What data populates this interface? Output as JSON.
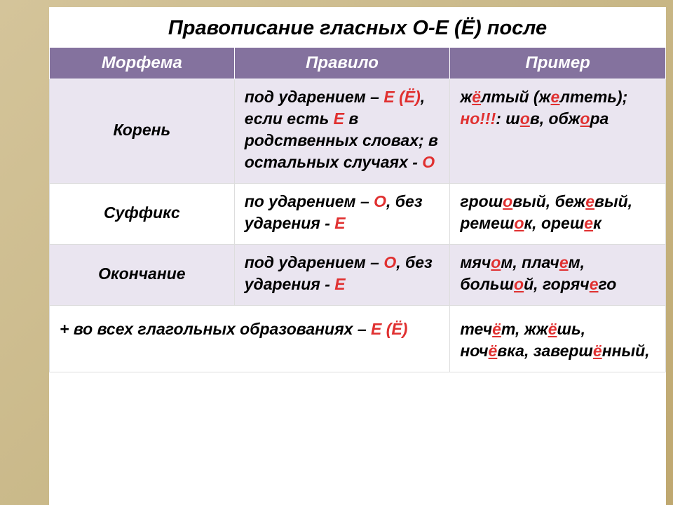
{
  "title": "Правописание гласных О-Е (Ё) после",
  "header": {
    "col1": "Морфема",
    "col2": "Правило",
    "col3": "Пример"
  },
  "rows": {
    "r1": {
      "morph": "Корень",
      "rule": {
        "t1": "под ударением – ",
        "e": "Е (Ё)",
        "t2": ", если есть ",
        "e2": "Е",
        "t3": " в родственных словах; в остальных случаях - ",
        "o": "О"
      },
      "ex": {
        "t1": "ж",
        "h1": "ё",
        "t2": "лтый (ж",
        "h2": "е",
        "t3": "лтеть);",
        "no": "но!!!",
        "t4": ": ш",
        "h3": "о",
        "t5": "в, обж",
        "h4": "о",
        "t6": "ра"
      }
    },
    "r2": {
      "morph": "Суффикс",
      "rule": {
        "t1": "по ударением – ",
        "o": "О",
        "t2": ", без ударения - ",
        "e": "Е"
      },
      "ex": {
        "t1": "грош",
        "h1": "о",
        "t2": "вый, беж",
        "h2": "е",
        "t3": "вый, ремеш",
        "h3": "о",
        "t4": "к, ореш",
        "h4": "е",
        "t5": "к"
      }
    },
    "r3": {
      "morph": "Окончание",
      "rule": {
        "t1": "под ударением – ",
        "o": "О",
        "t2": ", без ударения - ",
        "e": "Е"
      },
      "ex": {
        "t1": "мяч",
        "h1": "о",
        "t2": "м, плач",
        "h2": "е",
        "t3": "м, больш",
        "h3": "о",
        "t4": "й, горяч",
        "h4": "е",
        "t5": "го"
      }
    },
    "r4": {
      "note": {
        "t1": "+ во всех глагольных образованиях – ",
        "e": "Е (Ё)"
      },
      "ex": {
        "t1": "теч",
        "h1": "ё",
        "t2": "т, жж",
        "h2": "ё",
        "t3": "шь, ноч",
        "h3": "ё",
        "t4": "вка, заверш",
        "h4": "ё",
        "t5": "нный,"
      }
    }
  }
}
